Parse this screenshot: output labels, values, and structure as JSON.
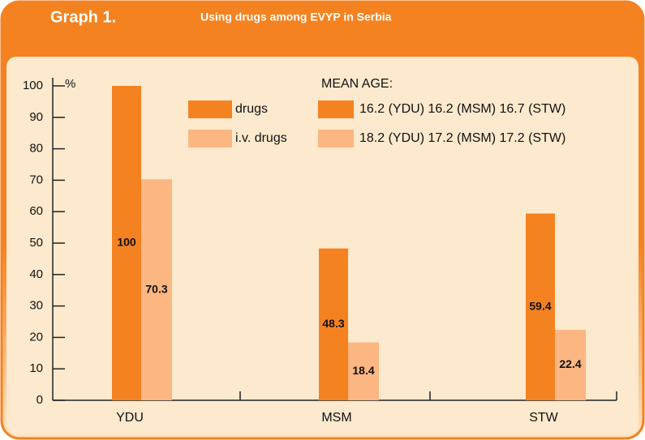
{
  "chart_data": {
    "type": "bar",
    "badge": "Graph 1.",
    "title": "Using drugs among EVYP in Serbia",
    "y_unit": "%",
    "categories": [
      "YDU",
      "MSM",
      "STW"
    ],
    "series": [
      {
        "name": "drugs",
        "color": "#f58220",
        "values": [
          100,
          48.3,
          59.4
        ]
      },
      {
        "name": "i.v. drugs",
        "color": "#fbb682",
        "values": [
          70.3,
          18.4,
          22.4
        ]
      }
    ],
    "ylim": [
      0,
      100
    ],
    "yticks": [
      0,
      10,
      20,
      30,
      40,
      50,
      60,
      70,
      80,
      90,
      100
    ],
    "mean_age": {
      "label": "MEAN AGE:",
      "rows": [
        "16.2 (YDU) 16.2 (MSM) 16.7 (STW)",
        "18.2 (YDU) 17.2 (MSM) 17.2 (STW)"
      ]
    }
  }
}
